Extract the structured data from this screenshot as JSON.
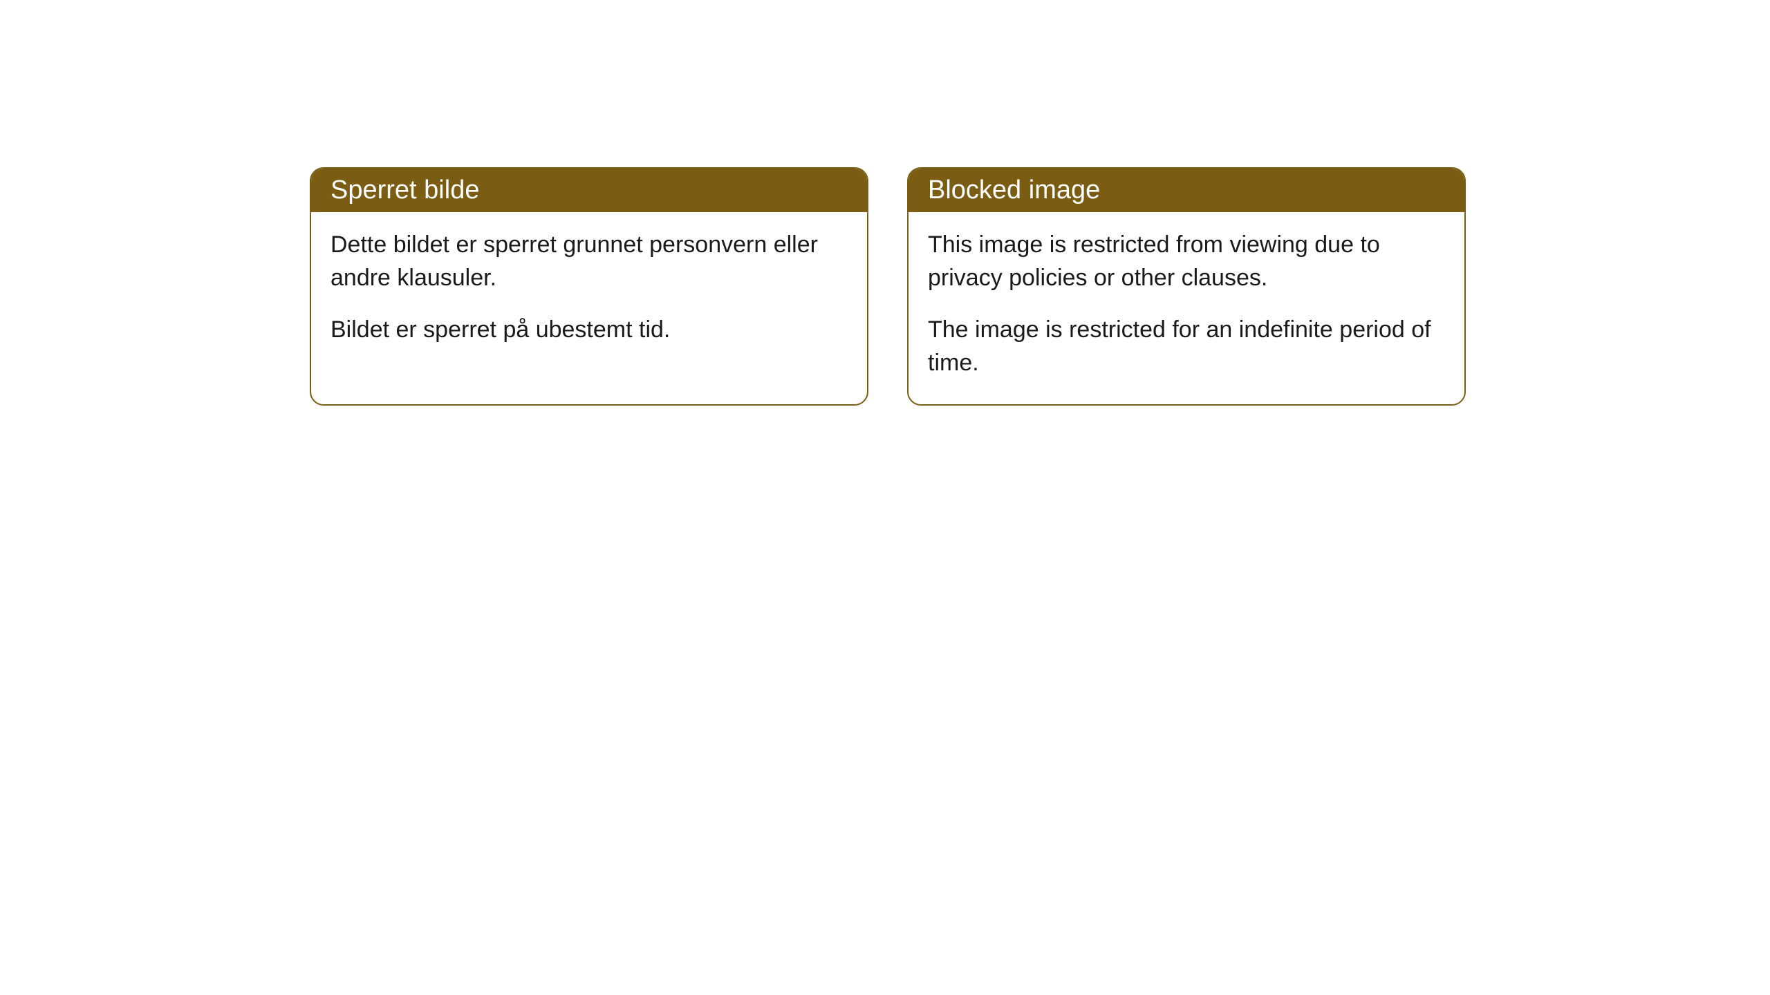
{
  "cards": [
    {
      "title": "Sperret bilde",
      "paragraph1": "Dette bildet er sperret grunnet personvern eller andre klausuler.",
      "paragraph2": "Bildet er sperret på ubestemt tid."
    },
    {
      "title": "Blocked image",
      "paragraph1": "This image is restricted from viewing due to privacy policies or other clauses.",
      "paragraph2": "The image is restricted for an indefinite period of time."
    }
  ],
  "styling": {
    "header_background": "#7a5c13",
    "header_text_color": "#ffffff",
    "border_color": "#7a5c13",
    "body_background": "#ffffff",
    "body_text_color": "#1a1a1a",
    "border_radius": 20,
    "title_fontsize": 38,
    "body_fontsize": 34
  }
}
